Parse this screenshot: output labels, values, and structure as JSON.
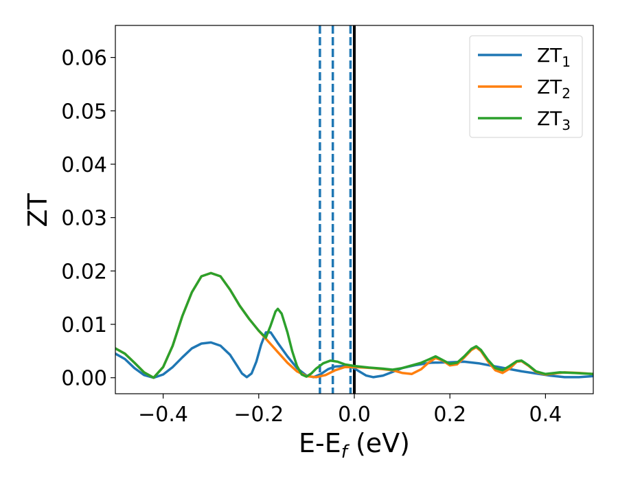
{
  "chart_data": {
    "type": "line",
    "xlabel": "E-E",
    "xlabel_sub": "f",
    "xlabel_unit": " (eV)",
    "ylabel": "ZT",
    "xlim": [
      -0.5,
      0.5
    ],
    "ylim": [
      -0.003,
      0.066
    ],
    "x_ticks": [
      -0.4,
      -0.2,
      0.0,
      0.2,
      0.4
    ],
    "x_tick_labels": [
      "−0.4",
      "−0.2",
      "0.0",
      "0.2",
      "0.4"
    ],
    "y_ticks": [
      0.0,
      0.01,
      0.02,
      0.03,
      0.04,
      0.05,
      0.06
    ],
    "y_tick_labels": [
      "0.00",
      "0.01",
      "0.02",
      "0.03",
      "0.04",
      "0.05",
      "0.06"
    ],
    "grid": false,
    "legend_position": "top-right",
    "vlines": [
      {
        "x": -0.072,
        "style": "dashed",
        "color": "#1f77b4"
      },
      {
        "x": -0.045,
        "style": "dashed",
        "color": "#1f77b4"
      },
      {
        "x": -0.008,
        "style": "dashed",
        "color": "#1f77b4"
      },
      {
        "x": 0.0,
        "style": "solid",
        "color": "#000000"
      }
    ],
    "series": [
      {
        "name": "ZT",
        "sub": "1",
        "color": "#1f77b4",
        "points": [
          [
            -0.5,
            0.0045
          ],
          [
            -0.48,
            0.0035
          ],
          [
            -0.46,
            0.0018
          ],
          [
            -0.44,
            0.0005
          ],
          [
            -0.42,
            0.0
          ],
          [
            -0.4,
            0.0006
          ],
          [
            -0.38,
            0.002
          ],
          [
            -0.36,
            0.0038
          ],
          [
            -0.34,
            0.0055
          ],
          [
            -0.32,
            0.0064
          ],
          [
            -0.3,
            0.0066
          ],
          [
            -0.28,
            0.006
          ],
          [
            -0.26,
            0.0043
          ],
          [
            -0.245,
            0.0022
          ],
          [
            -0.235,
            0.0008
          ],
          [
            -0.225,
            0.0001
          ],
          [
            -0.215,
            0.0008
          ],
          [
            -0.205,
            0.003
          ],
          [
            -0.195,
            0.0062
          ],
          [
            -0.185,
            0.0085
          ],
          [
            -0.175,
            0.0085
          ],
          [
            -0.16,
            0.0065
          ],
          [
            -0.14,
            0.004
          ],
          [
            -0.12,
            0.0018
          ],
          [
            -0.1,
            0.0004
          ],
          [
            -0.085,
            0.0001
          ],
          [
            -0.07,
            0.0007
          ],
          [
            -0.055,
            0.0016
          ],
          [
            -0.04,
            0.0021
          ],
          [
            -0.02,
            0.0022
          ],
          [
            -0.005,
            0.002
          ],
          [
            0.01,
            0.0012
          ],
          [
            0.025,
            0.0004
          ],
          [
            0.04,
            0.0001
          ],
          [
            0.06,
            0.0004
          ],
          [
            0.08,
            0.0011
          ],
          [
            0.1,
            0.0018
          ],
          [
            0.13,
            0.0024
          ],
          [
            0.16,
            0.0028
          ],
          [
            0.2,
            0.0029
          ],
          [
            0.23,
            0.003
          ],
          [
            0.26,
            0.0027
          ],
          [
            0.29,
            0.0022
          ],
          [
            0.32,
            0.0017
          ],
          [
            0.35,
            0.0012
          ],
          [
            0.38,
            0.0008
          ],
          [
            0.41,
            0.0004
          ],
          [
            0.44,
            0.0001
          ],
          [
            0.47,
            0.0001
          ],
          [
            0.5,
            0.0003
          ]
        ]
      },
      {
        "name": "ZT",
        "sub": "2",
        "color": "#ff7f0e",
        "points": [
          [
            -0.5,
            0.0055
          ],
          [
            -0.48,
            0.0045
          ],
          [
            -0.46,
            0.0028
          ],
          [
            -0.44,
            0.001
          ],
          [
            -0.42,
            0.0
          ],
          [
            -0.4,
            0.002
          ],
          [
            -0.38,
            0.006
          ],
          [
            -0.36,
            0.0115
          ],
          [
            -0.34,
            0.016
          ],
          [
            -0.32,
            0.019
          ],
          [
            -0.3,
            0.0196
          ],
          [
            -0.28,
            0.019
          ],
          [
            -0.26,
            0.0165
          ],
          [
            -0.24,
            0.0135
          ],
          [
            -0.22,
            0.011
          ],
          [
            -0.2,
            0.0088
          ],
          [
            -0.18,
            0.0068
          ],
          [
            -0.16,
            0.0048
          ],
          [
            -0.14,
            0.0028
          ],
          [
            -0.12,
            0.0012
          ],
          [
            -0.1,
            0.0003
          ],
          [
            -0.08,
            0.0001
          ],
          [
            -0.06,
            0.0005
          ],
          [
            -0.04,
            0.0014
          ],
          [
            -0.02,
            0.002
          ],
          [
            0.0,
            0.002
          ],
          [
            0.02,
            0.0019
          ],
          [
            0.04,
            0.0018
          ],
          [
            0.06,
            0.0016
          ],
          [
            0.08,
            0.0014
          ],
          [
            0.1,
            0.0009
          ],
          [
            0.12,
            0.0007
          ],
          [
            0.14,
            0.0016
          ],
          [
            0.155,
            0.0028
          ],
          [
            0.17,
            0.0037
          ],
          [
            0.185,
            0.0032
          ],
          [
            0.2,
            0.0023
          ],
          [
            0.215,
            0.0025
          ],
          [
            0.23,
            0.0038
          ],
          [
            0.245,
            0.0052
          ],
          [
            0.255,
            0.0057
          ],
          [
            0.265,
            0.005
          ],
          [
            0.28,
            0.003
          ],
          [
            0.295,
            0.0014
          ],
          [
            0.31,
            0.0009
          ],
          [
            0.325,
            0.0017
          ],
          [
            0.34,
            0.003
          ],
          [
            0.35,
            0.0031
          ],
          [
            0.365,
            0.0022
          ],
          [
            0.38,
            0.0011
          ],
          [
            0.4,
            0.0006
          ],
          [
            0.44,
            0.001
          ],
          [
            0.47,
            0.0009
          ],
          [
            0.5,
            0.0007
          ]
        ]
      },
      {
        "name": "ZT",
        "sub": "3",
        "color": "#2ca02c",
        "points": [
          [
            -0.5,
            0.0055
          ],
          [
            -0.48,
            0.0045
          ],
          [
            -0.46,
            0.0028
          ],
          [
            -0.44,
            0.001
          ],
          [
            -0.42,
            0.0
          ],
          [
            -0.4,
            0.002
          ],
          [
            -0.38,
            0.006
          ],
          [
            -0.36,
            0.0115
          ],
          [
            -0.34,
            0.016
          ],
          [
            -0.32,
            0.019
          ],
          [
            -0.3,
            0.0196
          ],
          [
            -0.28,
            0.019
          ],
          [
            -0.26,
            0.0165
          ],
          [
            -0.24,
            0.0135
          ],
          [
            -0.22,
            0.011
          ],
          [
            -0.2,
            0.0088
          ],
          [
            -0.185,
            0.0075
          ],
          [
            -0.175,
            0.0098
          ],
          [
            -0.165,
            0.0124
          ],
          [
            -0.16,
            0.0129
          ],
          [
            -0.152,
            0.012
          ],
          [
            -0.14,
            0.0085
          ],
          [
            -0.13,
            0.005
          ],
          [
            -0.12,
            0.0022
          ],
          [
            -0.11,
            0.0006
          ],
          [
            -0.1,
            0.0002
          ],
          [
            -0.09,
            0.0008
          ],
          [
            -0.08,
            0.0017
          ],
          [
            -0.065,
            0.0027
          ],
          [
            -0.05,
            0.0032
          ],
          [
            -0.035,
            0.003
          ],
          [
            -0.02,
            0.0025
          ],
          [
            0.0,
            0.0022
          ],
          [
            0.03,
            0.0019
          ],
          [
            0.06,
            0.0017
          ],
          [
            0.08,
            0.0015
          ],
          [
            0.1,
            0.0018
          ],
          [
            0.12,
            0.0023
          ],
          [
            0.14,
            0.0028
          ],
          [
            0.155,
            0.0034
          ],
          [
            0.17,
            0.004
          ],
          [
            0.185,
            0.0033
          ],
          [
            0.2,
            0.0026
          ],
          [
            0.215,
            0.0028
          ],
          [
            0.23,
            0.004
          ],
          [
            0.245,
            0.0054
          ],
          [
            0.255,
            0.0059
          ],
          [
            0.265,
            0.0052
          ],
          [
            0.28,
            0.0033
          ],
          [
            0.295,
            0.0018
          ],
          [
            0.31,
            0.0014
          ],
          [
            0.325,
            0.0022
          ],
          [
            0.34,
            0.0031
          ],
          [
            0.35,
            0.0032
          ],
          [
            0.365,
            0.0023
          ],
          [
            0.38,
            0.0012
          ],
          [
            0.4,
            0.0007
          ],
          [
            0.43,
            0.001
          ],
          [
            0.46,
            0.0009
          ],
          [
            0.5,
            0.0007
          ]
        ]
      }
    ]
  }
}
